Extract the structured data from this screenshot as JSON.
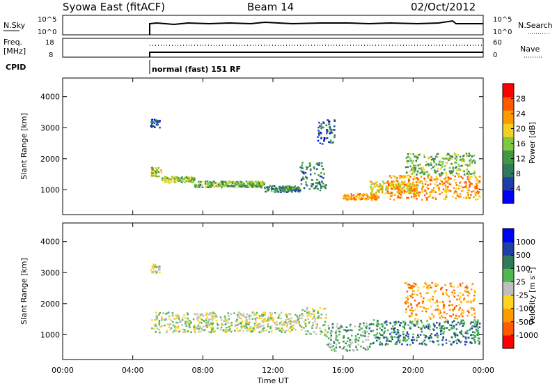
{
  "header": {
    "title": "Syowa East (fitACF)",
    "beam": "Beam 14",
    "date": "02/Oct/2012"
  },
  "top_panels": {
    "nsky_label": "N.Sky",
    "nsky_ticks": [
      "10^5",
      "10^0"
    ],
    "nsearch_label": "N.Search",
    "nsearch_ticks": [
      "10^5",
      "10^0"
    ],
    "freq_label": "Freq.",
    "freq_unit": "[MHz]",
    "freq_ticks": [
      "18",
      "8"
    ],
    "nave_label": "Nave",
    "nave_ticks": [
      "60",
      "0"
    ],
    "cpid_label": "CPID",
    "cpid_text": "normal (fast) 151 RF"
  },
  "chart_data": [
    {
      "type": "heatmap",
      "name": "power",
      "ylabel": "Slant Range [km]",
      "yticks": [
        "1000",
        "2000",
        "3000",
        "4000"
      ],
      "ylim": [
        200,
        4600
      ],
      "xlim": [
        0,
        24
      ],
      "colorbar_label": "Power [dB]",
      "colorbar_ticks": [
        "4",
        "8",
        "12",
        "16",
        "20",
        "24",
        "28"
      ],
      "colorbar_range": [
        0,
        32
      ],
      "colors": [
        "#0000ff",
        "#1f3fa6",
        "#2f7a5a",
        "#3f9a3f",
        "#7fc83f",
        "#f2d21f",
        "#ff9a00",
        "#ff5a00",
        "#ff0000"
      ],
      "bands": [
        {
          "t0": 5.0,
          "t1": 5.5,
          "r0": 3000,
          "r1": 3300,
          "v": 6
        },
        {
          "t0": 5.0,
          "t1": 5.6,
          "r0": 1450,
          "r1": 1750,
          "v": 18
        },
        {
          "t0": 5.6,
          "t1": 7.5,
          "r0": 1250,
          "r1": 1450,
          "v": 16
        },
        {
          "t0": 7.5,
          "t1": 11.5,
          "r0": 1100,
          "r1": 1300,
          "v": 14
        },
        {
          "t0": 11.5,
          "t1": 13.5,
          "r0": 950,
          "r1": 1150,
          "v": 10
        },
        {
          "t0": 13.5,
          "t1": 15.0,
          "r0": 1000,
          "r1": 1900,
          "v": 8
        },
        {
          "t0": 16.0,
          "t1": 18.0,
          "r0": 700,
          "r1": 900,
          "v": 24
        },
        {
          "t0": 17.5,
          "t1": 20.5,
          "r0": 900,
          "r1": 1300,
          "v": 20
        },
        {
          "t0": 18.5,
          "t1": 23.8,
          "r0": 700,
          "r1": 1500,
          "v": 24
        },
        {
          "t0": 19.5,
          "t1": 23.5,
          "r0": 1500,
          "r1": 2200,
          "v": 14
        },
        {
          "t0": 14.5,
          "t1": 15.5,
          "r0": 2500,
          "r1": 3300,
          "v": 6
        }
      ]
    },
    {
      "type": "heatmap",
      "name": "velocity",
      "ylabel": "Slant Range [km]",
      "yticks": [
        "1000",
        "2000",
        "3000",
        "4000"
      ],
      "ylim": [
        200,
        4600
      ],
      "xlim": [
        0,
        24
      ],
      "xticks": [
        "00:00",
        "04:00",
        "08:00",
        "12:00",
        "16:00",
        "20:00",
        "00:00"
      ],
      "xlabel": "Time UT",
      "colorbar_label": "Velocity [m s",
      "colorbar_unit_sup": "-1",
      "colorbar_ticks": [
        "1000",
        "500",
        "100",
        "25",
        "-25",
        "-100",
        "-500",
        "-1000"
      ],
      "colors": [
        "#0000ff",
        "#1f3fa6",
        "#2f7a5a",
        "#4fb84f",
        "#bfbfbf",
        "#ffd21f",
        "#ff9a00",
        "#ff5a00",
        "#ff0000"
      ],
      "bands": [
        {
          "t0": 5.0,
          "t1": 5.5,
          "r0": 3000,
          "r1": 3300,
          "v": 4
        },
        {
          "t0": 5.0,
          "t1": 13.5,
          "r0": 1100,
          "r1": 1750,
          "v": 4
        },
        {
          "t0": 13.5,
          "t1": 15.0,
          "r0": 1000,
          "r1": 1900,
          "v": 4
        },
        {
          "t0": 15.0,
          "t1": 17.5,
          "r0": 500,
          "r1": 1400,
          "v": 3
        },
        {
          "t0": 17.5,
          "t1": 23.8,
          "r0": 700,
          "r1": 1500,
          "v": 2
        },
        {
          "t0": 19.5,
          "t1": 23.5,
          "r0": 1500,
          "r1": 2700,
          "v": 6
        }
      ]
    }
  ]
}
